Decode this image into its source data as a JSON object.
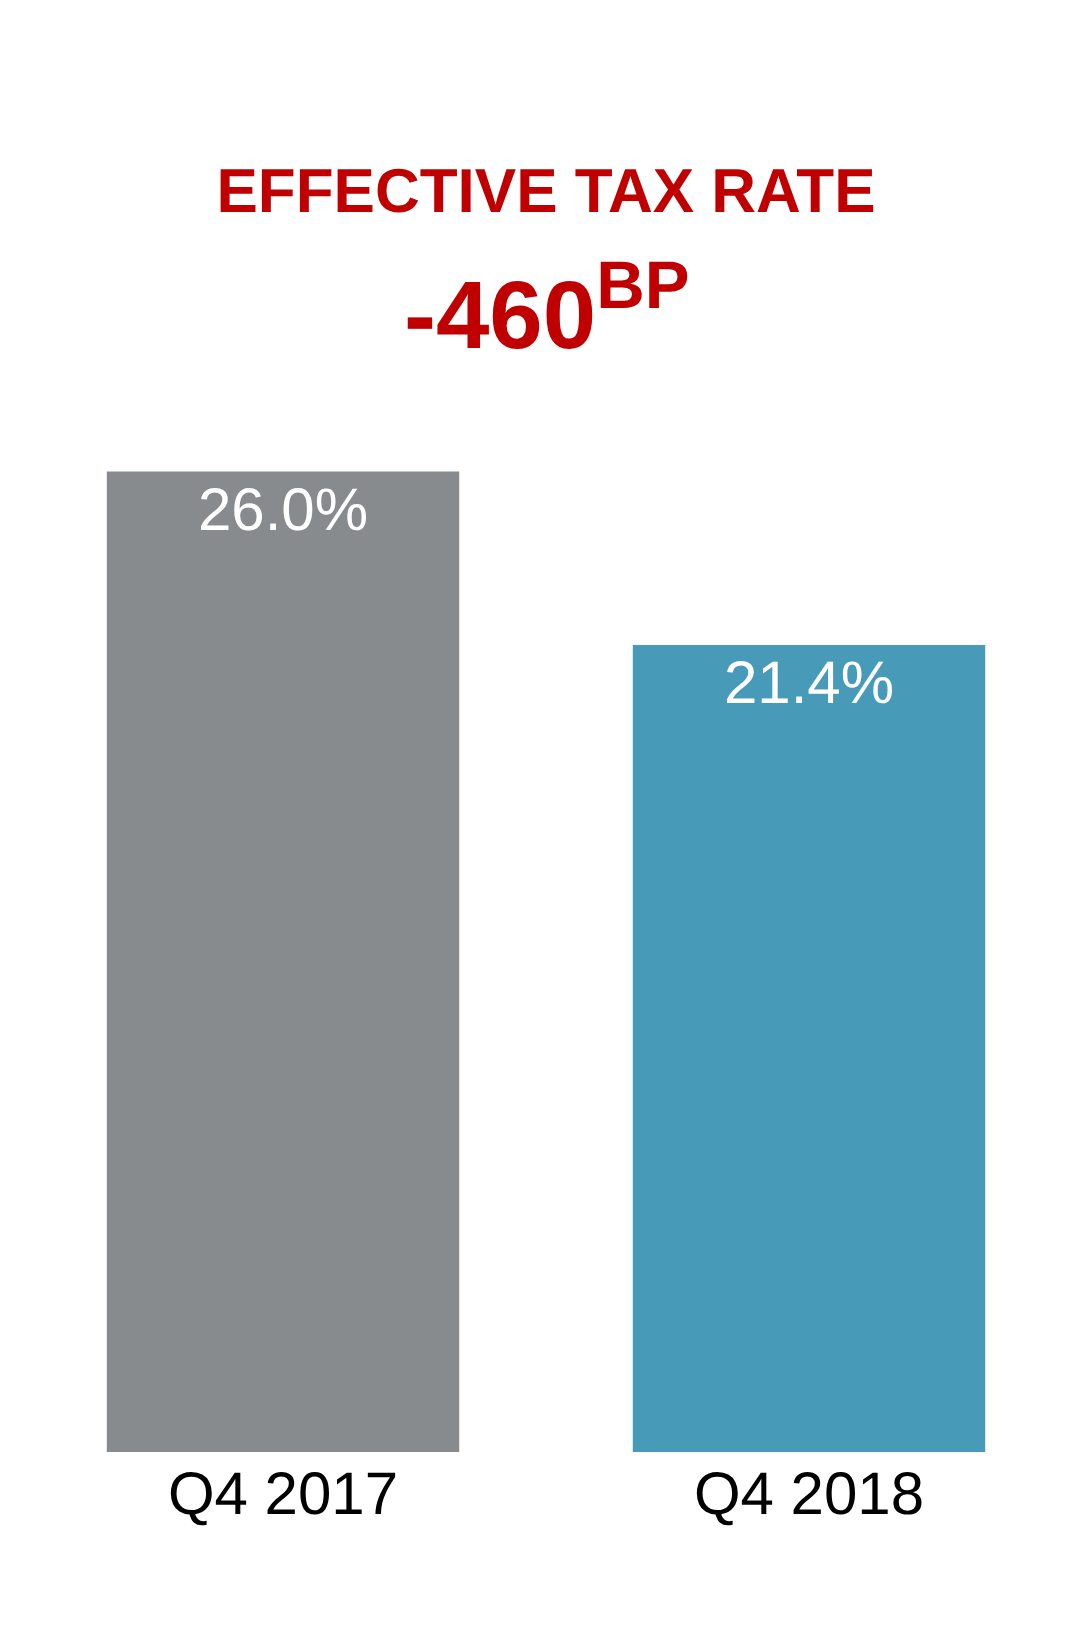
{
  "chart_data": {
    "type": "bar",
    "title": "EFFECTIVE TAX RATE",
    "subtitle": "-460$^{BP}$",
    "categories": [
      "Q4 2017",
      "Q4 2018"
    ],
    "values": [
      26.0,
      21.4
    ],
    "colors": [
      "#878b8e",
      "#479bb8"
    ],
    "value_labels": [
      "26.0%",
      "21.4%"
    ],
    "tick_labels": "x"
  }
}
